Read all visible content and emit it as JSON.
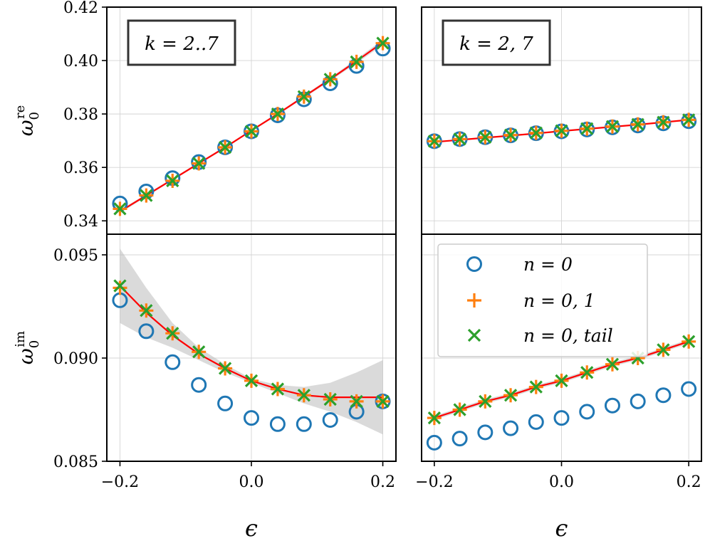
{
  "chart_data": [
    {
      "type": "scatter",
      "panel": "top-left",
      "label": "k = 2..7",
      "ylabel": "ω_0^re",
      "xlim": [
        -0.22,
        0.22
      ],
      "ylim": [
        0.335,
        0.42
      ],
      "yticks": [
        "0.34",
        "0.36",
        "0.38",
        "0.40",
        "0.42"
      ],
      "x": [
        -0.2,
        -0.16,
        -0.12,
        -0.08,
        -0.04,
        0.0,
        0.04,
        0.08,
        0.12,
        0.16,
        0.2
      ],
      "series": [
        {
          "name": "n = 0",
          "values": [
            0.3465,
            0.351,
            0.356,
            0.362,
            0.3675,
            0.3735,
            0.3795,
            0.3855,
            0.3915,
            0.398,
            0.4045
          ]
        },
        {
          "name": "n = 0, 1",
          "values": [
            0.3445,
            0.3495,
            0.355,
            0.3615,
            0.3675,
            0.3735,
            0.38,
            0.3865,
            0.393,
            0.3995,
            0.4065
          ]
        },
        {
          "name": "n = 0, tail",
          "values": [
            0.3445,
            0.3495,
            0.355,
            0.3615,
            0.3675,
            0.3735,
            0.38,
            0.3865,
            0.393,
            0.3995,
            0.4065
          ]
        }
      ],
      "fit": [
        0.3435,
        0.3495,
        0.3555,
        0.3615,
        0.3675,
        0.3738,
        0.38,
        0.3865,
        0.393,
        0.3998,
        0.4068
      ],
      "band": [
        0.0006,
        0.0005,
        0.0004,
        0.0004,
        0.0004,
        0.0004,
        0.0004,
        0.0005,
        0.0006,
        0.0008,
        0.001
      ]
    },
    {
      "type": "scatter",
      "panel": "top-right",
      "label": "k = 2, 7",
      "ylabel": "",
      "xlim": [
        -0.22,
        0.22
      ],
      "ylim": [
        0.335,
        0.42
      ],
      "yticks": [],
      "x": [
        -0.2,
        -0.16,
        -0.12,
        -0.08,
        -0.04,
        0.0,
        0.04,
        0.08,
        0.12,
        0.16,
        0.2
      ],
      "series": [
        {
          "name": "n = 0",
          "values": [
            0.3698,
            0.3706,
            0.3713,
            0.372,
            0.3728,
            0.3735,
            0.3742,
            0.375,
            0.3757,
            0.3765,
            0.3773
          ]
        },
        {
          "name": "n = 0, 1",
          "values": [
            0.3698,
            0.3706,
            0.3713,
            0.3721,
            0.3729,
            0.3737,
            0.3745,
            0.3753,
            0.3761,
            0.3769,
            0.3778
          ]
        },
        {
          "name": "n = 0, tail",
          "values": [
            0.3698,
            0.3706,
            0.3713,
            0.3721,
            0.3729,
            0.3737,
            0.3745,
            0.3753,
            0.3761,
            0.3769,
            0.3778
          ]
        }
      ],
      "fit": [
        0.3695,
        0.3703,
        0.3711,
        0.3719,
        0.3727,
        0.3736,
        0.3744,
        0.3752,
        0.376,
        0.3769,
        0.3778
      ],
      "band": [
        0.0002,
        0.0002,
        0.0002,
        0.0002,
        0.0002,
        0.0002,
        0.0002,
        0.0002,
        0.0002,
        0.0002,
        0.0002
      ]
    },
    {
      "type": "scatter",
      "panel": "bottom-left",
      "label": "",
      "ylabel": "ω_0^im",
      "xlabel": "ϵ",
      "xlim": [
        -0.22,
        0.22
      ],
      "ylim": [
        0.085,
        0.096
      ],
      "yticks": [
        "0.085",
        "0.090",
        "0.095"
      ],
      "xticks": [
        "−0.2",
        "0.0",
        "0.2"
      ],
      "x": [
        -0.2,
        -0.16,
        -0.12,
        -0.08,
        -0.04,
        0.0,
        0.04,
        0.08,
        0.12,
        0.16,
        0.2
      ],
      "series": [
        {
          "name": "n = 0",
          "values": [
            0.0928,
            0.0913,
            0.0898,
            0.0887,
            0.0878,
            0.0871,
            0.0868,
            0.0868,
            0.087,
            0.0874,
            0.0879
          ]
        },
        {
          "name": "n = 0, 1",
          "values": [
            0.0934,
            0.0923,
            0.0912,
            0.0903,
            0.0895,
            0.0889,
            0.0885,
            0.0882,
            0.088,
            0.0879,
            0.0879
          ]
        },
        {
          "name": "n = 0, tail",
          "values": [
            0.0935,
            0.0923,
            0.0912,
            0.0903,
            0.0895,
            0.0889,
            0.0885,
            0.0882,
            0.088,
            0.0879,
            0.0879
          ]
        }
      ],
      "fit": [
        0.0935,
        0.0922,
        0.0911,
        0.0902,
        0.0895,
        0.0889,
        0.0885,
        0.0882,
        0.0881,
        0.0881,
        0.0881
      ],
      "band": [
        0.0018,
        0.0012,
        0.0006,
        0.0003,
        0.0002,
        0.0001,
        0.0002,
        0.0004,
        0.0007,
        0.0012,
        0.0018
      ]
    },
    {
      "type": "scatter",
      "panel": "bottom-right",
      "label": "",
      "ylabel": "",
      "xlabel": "ϵ",
      "xlim": [
        -0.22,
        0.22
      ],
      "ylim": [
        0.085,
        0.096
      ],
      "yticks": [],
      "xticks": [
        "−0.2",
        "0.0",
        "0.2"
      ],
      "x": [
        -0.2,
        -0.16,
        -0.12,
        -0.08,
        -0.04,
        0.0,
        0.04,
        0.08,
        0.12,
        0.16,
        0.2
      ],
      "series": [
        {
          "name": "n = 0",
          "values": [
            0.0859,
            0.0861,
            0.0864,
            0.0866,
            0.0869,
            0.0871,
            0.0874,
            0.0877,
            0.0879,
            0.0882,
            0.0885
          ]
        },
        {
          "name": "n = 0, 1",
          "values": [
            0.0871,
            0.0875,
            0.0879,
            0.0882,
            0.0886,
            0.0889,
            0.0893,
            0.0897,
            0.09,
            0.0904,
            0.0908
          ]
        },
        {
          "name": "n = 0, tail",
          "values": [
            0.0871,
            0.0875,
            0.0879,
            0.0882,
            0.0886,
            0.0889,
            0.0893,
            0.0897,
            0.09,
            0.0904,
            0.0908
          ]
        }
      ],
      "fit": [
        0.0871,
        0.0875,
        0.0879,
        0.0882,
        0.0886,
        0.0889,
        0.0893,
        0.0897,
        0.09,
        0.0904,
        0.0908
      ],
      "band": [
        0.0001,
        0.0001,
        0.0001,
        0.0001,
        0.0001,
        0.0001,
        0.0001,
        0.0001,
        0.0001,
        0.0001,
        0.0001
      ]
    }
  ],
  "legend": {
    "placement": "bottom-right panel, top",
    "entries": [
      {
        "label": "n = 0",
        "marker": "circle",
        "color": "#1f77b4"
      },
      {
        "label": "n = 0, 1",
        "marker": "plus",
        "color": "#ff7f0e"
      },
      {
        "label": "n = 0, tail",
        "marker": "x",
        "color": "#2ca02c"
      }
    ]
  },
  "colors": {
    "n0": "#1f77b4",
    "n01": "#ff7f0e",
    "ntail": "#2ca02c",
    "fit": "#ff0000",
    "band": "#bbbbbb",
    "grid": "#d4d4d4"
  }
}
